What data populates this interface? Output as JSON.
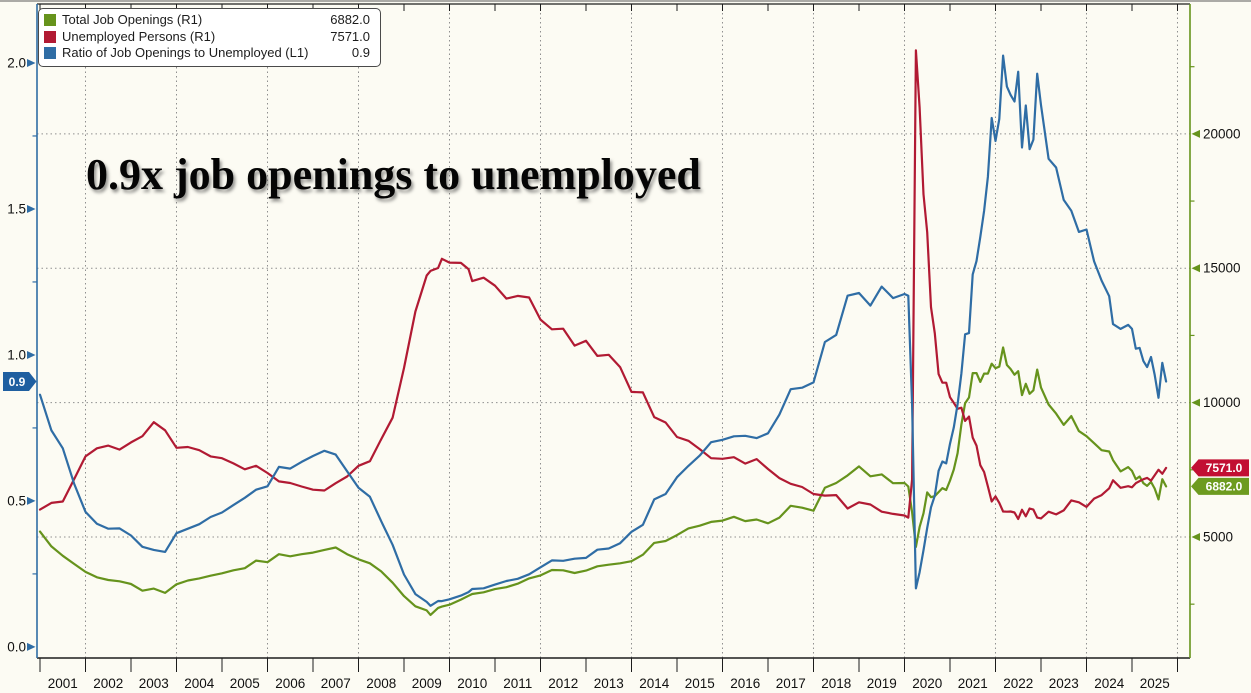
{
  "legend": {
    "items": [
      {
        "label": "Total Job Openings (R1)",
        "value": "6882.0",
        "color": "#66931c"
      },
      {
        "label": "Unemployed Persons (R1)",
        "value": "7571.0",
        "color": "#b11a33"
      },
      {
        "label": "Ratio of Job Openings to Unemployed (L1)",
        "value": "0.9",
        "color": "#2f6da5"
      }
    ]
  },
  "annotation": {
    "title": "0.9x job openings to unemployed"
  },
  "chart_data": {
    "type": "line",
    "title": "0.9x job openings to unemployed",
    "grid": true,
    "legend_position": "top-left",
    "x_axis": {
      "range": [
        2000.934,
        2026.275
      ],
      "year_labels": [
        2001,
        2002,
        2003,
        2004,
        2005,
        2006,
        2007,
        2008,
        2009,
        2010,
        2011,
        2012,
        2013,
        2014,
        2015,
        2016,
        2017,
        2018,
        2019,
        2020,
        2021,
        2022,
        2023,
        2024,
        2025
      ],
      "tick_years": [
        2001,
        2002,
        2003,
        2004,
        2005,
        2006,
        2007,
        2008,
        2009,
        2010,
        2011,
        2012,
        2013,
        2014,
        2015,
        2016,
        2017,
        2018,
        2019,
        2020,
        2021,
        2022,
        2023,
        2024,
        2025,
        2026
      ],
      "gridline_years": [
        2002,
        2004,
        2006,
        2008,
        2010,
        2012,
        2014,
        2016,
        2018,
        2020,
        2022,
        2024,
        2026
      ]
    },
    "left_axis": {
      "side": "left",
      "color": "#2f6da5",
      "range": [
        -0.038,
        2.202
      ],
      "major_ticks": [
        0.0,
        0.5,
        1.0,
        1.5,
        2.0
      ],
      "minor_ticks": [
        0.25,
        0.75,
        1.25,
        1.75
      ],
      "current_value_badge": {
        "text": "0.9",
        "value": 0.909,
        "color": "#1f5fa0"
      }
    },
    "right_axis": {
      "side": "right",
      "color": "#66931c",
      "range": [
        497,
        24833
      ],
      "major_ticks": [
        5000,
        10000,
        15000,
        20000
      ],
      "minor_ticks": [
        2500,
        7500,
        12500,
        17500,
        22500
      ],
      "badges": [
        {
          "text": "7571.0",
          "value": 7571,
          "color": "#c20f33"
        },
        {
          "text": "6882.0",
          "value": 6882,
          "color": "#6d9b1f"
        }
      ]
    },
    "series": [
      {
        "name": "Total Job Openings (R1)",
        "axis": "right",
        "color": "#66931c",
        "points_key": "openings",
        "last_value": 6882.0
      },
      {
        "name": "Unemployed Persons (R1)",
        "axis": "right",
        "color": "#b11a33",
        "points_key": "unemployed",
        "last_value": 7571.0
      },
      {
        "name": "Ratio of Job Openings to Unemployed (L1)",
        "axis": "left",
        "color": "#2f6da5",
        "points_key": "ratio",
        "derived": "openings / unemployed",
        "last_value": 0.9
      }
    ],
    "points": {
      "t": [
        2001,
        2001.25,
        2001.5,
        2001.75,
        2002,
        2002.25,
        2002.5,
        2002.75,
        2003,
        2003.25,
        2003.5,
        2003.75,
        2004,
        2004.25,
        2004.5,
        2004.75,
        2005,
        2005.25,
        2005.5,
        2005.75,
        2006,
        2006.25,
        2006.5,
        2006.75,
        2007,
        2007.25,
        2007.5,
        2007.75,
        2008,
        2008.25,
        2008.5,
        2008.75,
        2009,
        2009.25,
        2009.5,
        2009.583,
        2009.75,
        2009.833,
        2010,
        2010.25,
        2010.417,
        2010.5,
        2010.75,
        2011,
        2011.25,
        2011.5,
        2011.75,
        2012,
        2012.25,
        2012.5,
        2012.75,
        2013,
        2013.25,
        2013.5,
        2013.75,
        2014,
        2014.25,
        2014.5,
        2014.75,
        2015,
        2015.25,
        2015.5,
        2015.75,
        2016,
        2016.25,
        2016.5,
        2016.75,
        2017,
        2017.25,
        2017.5,
        2017.75,
        2018,
        2018.25,
        2018.5,
        2018.75,
        2019,
        2019.25,
        2019.5,
        2019.75,
        2020,
        2020.083,
        2020.167,
        2020.25,
        2020.333,
        2020.417,
        2020.5,
        2020.583,
        2020.667,
        2020.75,
        2020.833,
        2020.917,
        2021,
        2021.083,
        2021.167,
        2021.25,
        2021.333,
        2021.417,
        2021.5,
        2021.583,
        2021.667,
        2021.75,
        2021.833,
        2021.917,
        2022,
        2022.083,
        2022.167,
        2022.25,
        2022.333,
        2022.417,
        2022.5,
        2022.583,
        2022.667,
        2022.75,
        2022.833,
        2022.917,
        2023,
        2023.167,
        2023.333,
        2023.5,
        2023.667,
        2023.833,
        2024,
        2024.167,
        2024.333,
        2024.5,
        2024.583,
        2024.75,
        2024.917,
        2025,
        2025.083,
        2025.167,
        2025.25,
        2025.333,
        2025.417,
        2025.5,
        2025.583,
        2025.667,
        2025.75
      ],
      "openings": [
        5200,
        4650,
        4300,
        4000,
        3700,
        3500,
        3400,
        3350,
        3250,
        3000,
        3080,
        2920,
        3240,
        3380,
        3460,
        3560,
        3650,
        3760,
        3840,
        4120,
        4060,
        4360,
        4280,
        4360,
        4420,
        4520,
        4610,
        4360,
        4170,
        4020,
        3720,
        3300,
        2800,
        2420,
        2270,
        2100,
        2360,
        2410,
        2480,
        2670,
        2810,
        2880,
        2940,
        3060,
        3130,
        3260,
        3460,
        3570,
        3770,
        3760,
        3660,
        3750,
        3910,
        3970,
        4020,
        4100,
        4340,
        4780,
        4850,
        5070,
        5320,
        5420,
        5560,
        5610,
        5750,
        5590,
        5650,
        5510,
        5720,
        6160,
        6090,
        5980,
        6830,
        7010,
        7290,
        7625,
        7260,
        7330,
        7000,
        7010,
        6880,
        5920,
        4630,
        5370,
        5880,
        6660,
        6480,
        6520,
        6670,
        6820,
        6750,
        7100,
        7510,
        8120,
        9190,
        9980,
        10190,
        11100,
        11100,
        10770,
        11080,
        11080,
        11450,
        11280,
        11340,
        12050,
        11400,
        11250,
        11040,
        11170,
        10280,
        10700,
        10330,
        10460,
        11230,
        10560,
        9930,
        9590,
        9170,
        9500,
        8940,
        8750,
        8490,
        8230,
        8180,
        7860,
        7440,
        7600,
        7460,
        7150,
        7250,
        7000,
        6900,
        7050,
        6800,
        6400,
        7150,
        6882
      ],
      "unemployed": [
        6020,
        6270,
        6320,
        7150,
        8000,
        8300,
        8400,
        8250,
        8520,
        8750,
        9270,
        8970,
        8320,
        8350,
        8230,
        8000,
        7930,
        7740,
        7520,
        7650,
        7380,
        7070,
        7010,
        6880,
        6760,
        6730,
        7000,
        7250,
        7650,
        7820,
        8640,
        9440,
        11290,
        13390,
        14730,
        14900,
        15010,
        15350,
        15210,
        15200,
        14970,
        14520,
        14650,
        14350,
        13870,
        13970,
        13910,
        13090,
        12730,
        12750,
        12120,
        12300,
        11740,
        11780,
        11320,
        10400,
        10380,
        9460,
        9260,
        8720,
        8580,
        8270,
        7930,
        7910,
        7970,
        7730,
        7900,
        7530,
        7190,
        6980,
        6860,
        6600,
        6540,
        6560,
        6060,
        6290,
        6210,
        5940,
        5860,
        5800,
        5720,
        7140,
        23110,
        20990,
        17750,
        16340,
        13550,
        12580,
        11060,
        10740,
        10740,
        10200,
        9990,
        9770,
        9810,
        9320,
        9480,
        8700,
        8400,
        7670,
        7420,
        6880,
        6320,
        6510,
        6270,
        5950,
        5940,
        5950,
        5910,
        5670,
        6010,
        5770,
        6060,
        6020,
        5720,
        5690,
        5940,
        5840,
        5990,
        6360,
        6290,
        6120,
        6430,
        6560,
        6810,
        7110,
        6830,
        6890,
        6850,
        7000,
        7080,
        7150,
        7200,
        7100,
        7300,
        7500,
        7350,
        7571
      ]
    }
  }
}
